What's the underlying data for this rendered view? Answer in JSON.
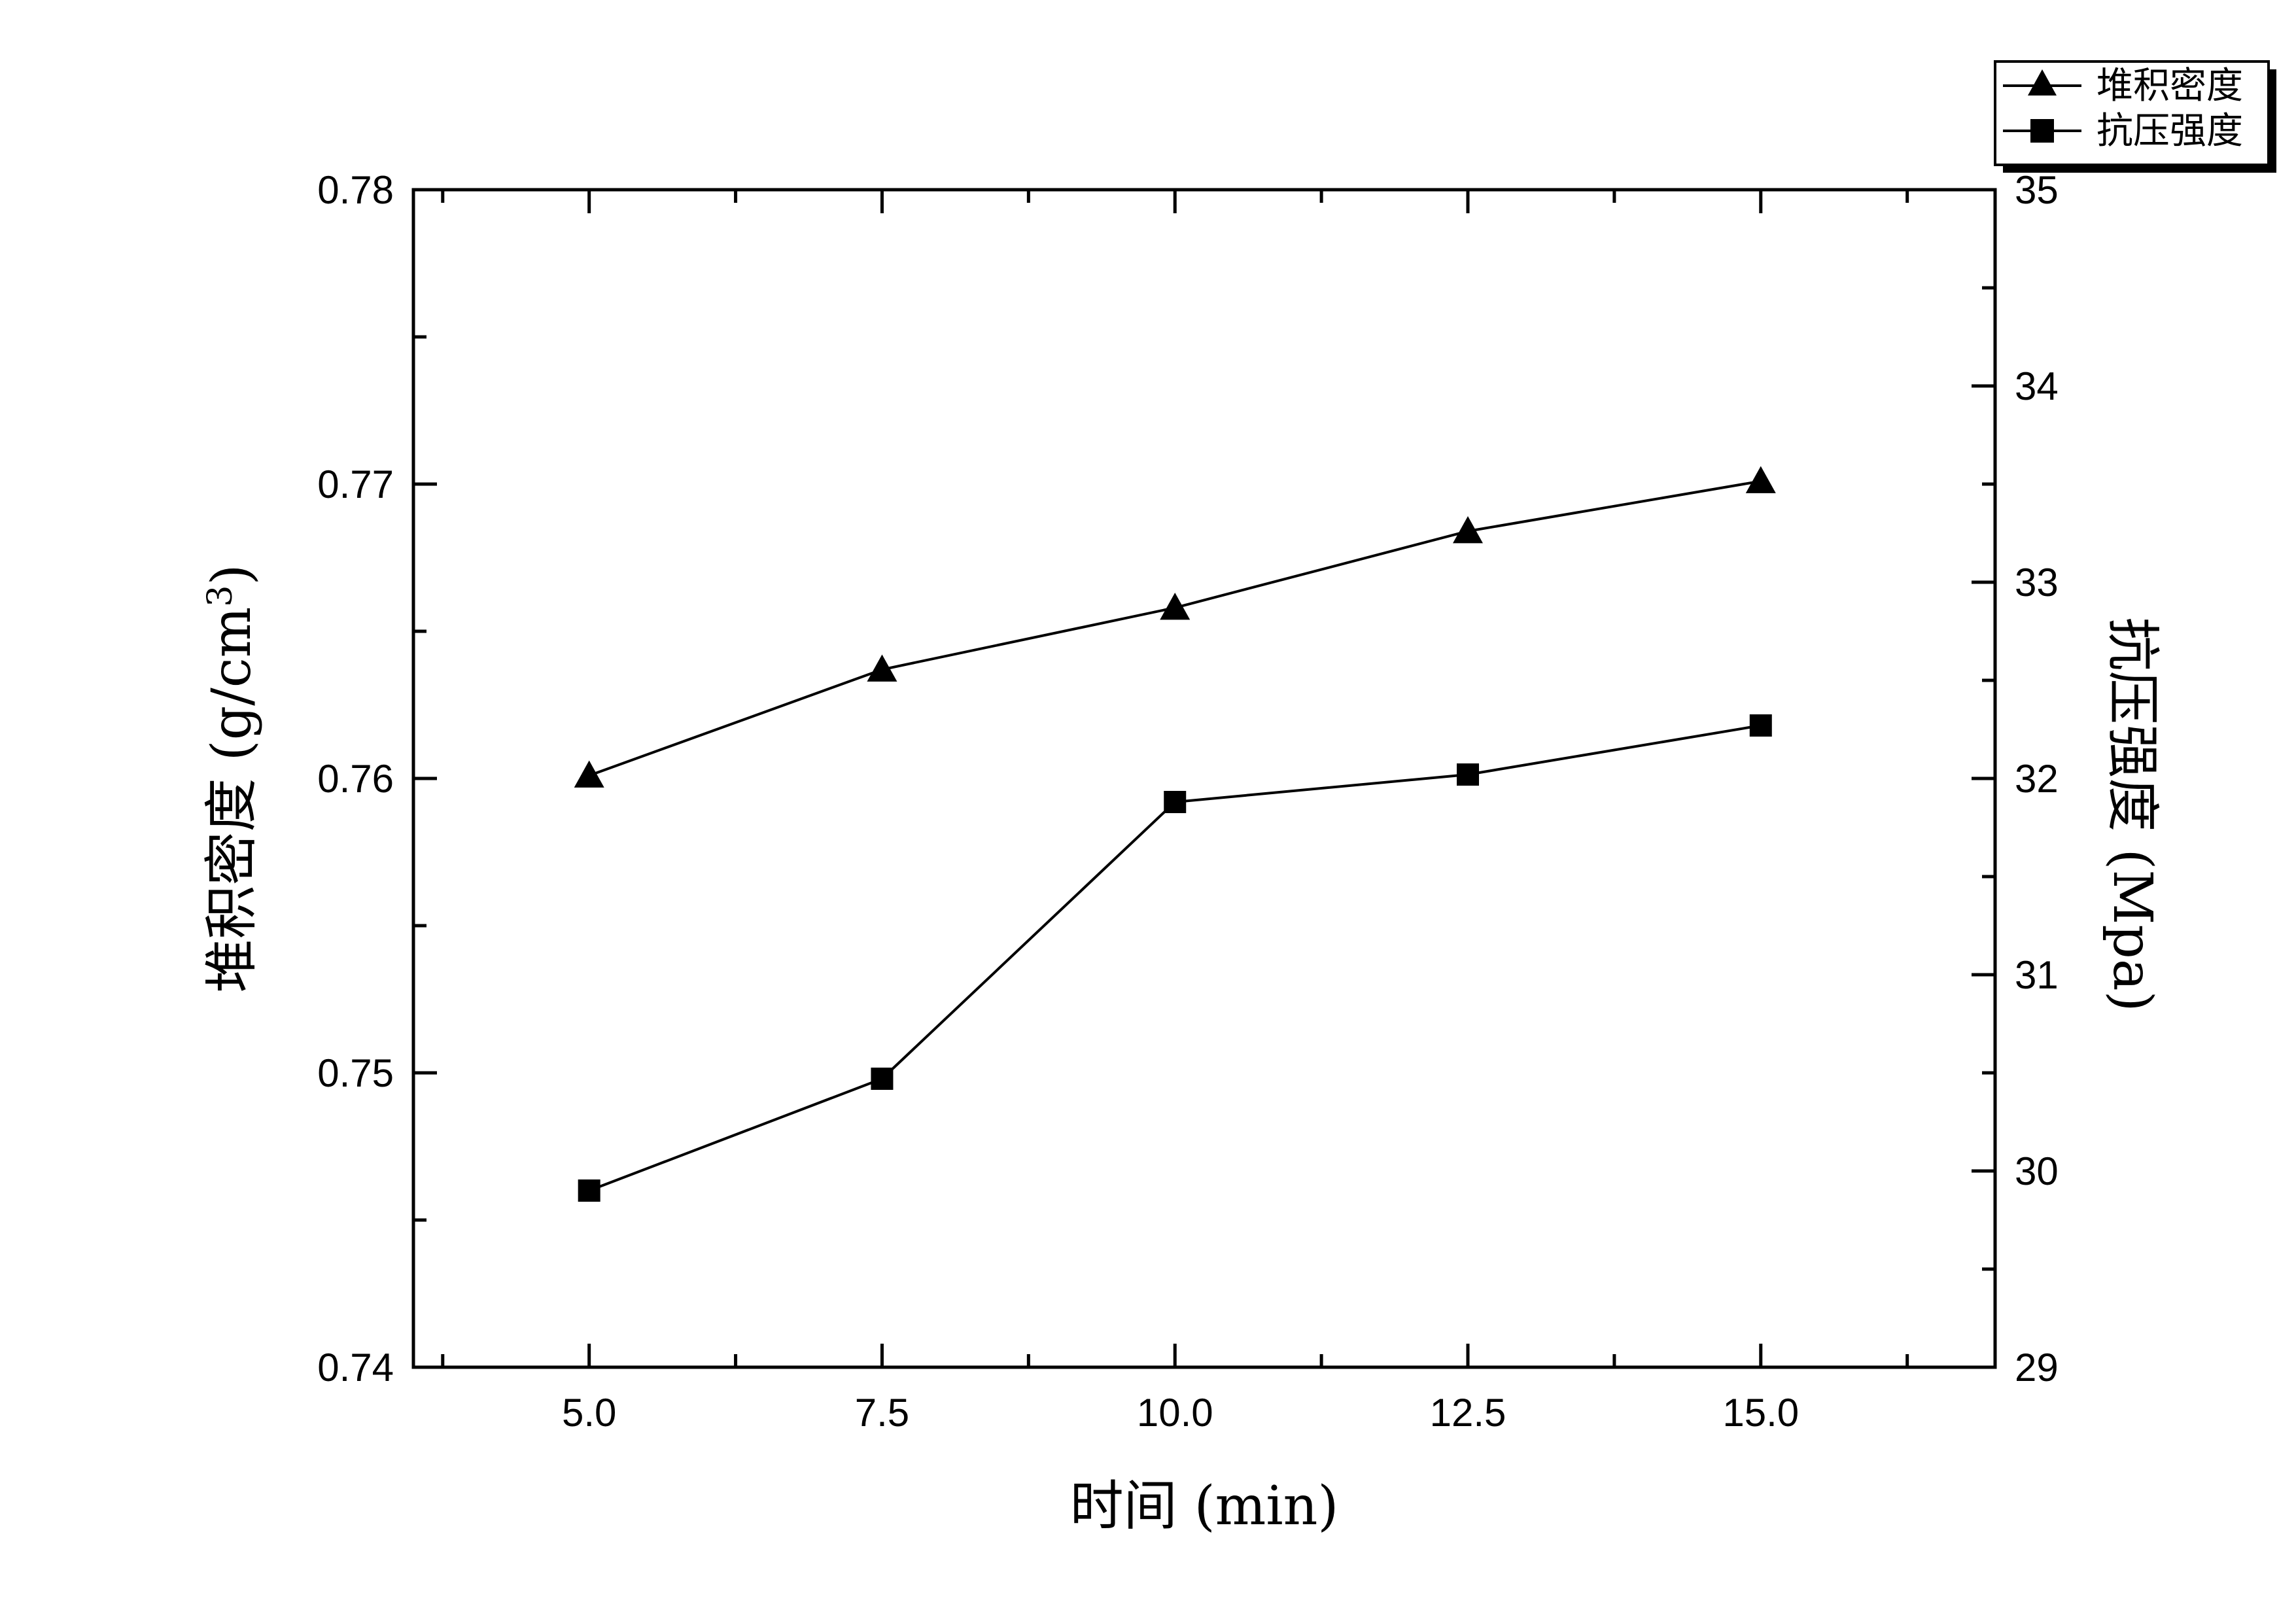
{
  "chart_data": {
    "type": "line",
    "x": [
      5.0,
      7.5,
      10.0,
      12.5,
      15.0
    ],
    "x_ticks": [
      "5.0",
      "7.5",
      "10.0",
      "12.5",
      "15.0"
    ],
    "xlabel": "时间 (min)",
    "xlim": [
      3.5,
      17.0
    ],
    "y_left": {
      "label_main": "堆积密度 (g/cm",
      "label_sup": "3",
      "label_end": ")",
      "ylim": [
        0.74,
        0.78
      ],
      "ticks": [
        "0.74",
        "0.75",
        "0.76",
        "0.77",
        "0.78"
      ]
    },
    "y_right": {
      "label": "抗压强度 (Mpa)",
      "ylim": [
        29,
        35
      ],
      "ticks": [
        "29",
        "30",
        "31",
        "32",
        "33",
        "34",
        "35"
      ]
    },
    "series": [
      {
        "name": "堆积密度",
        "axis": "left",
        "marker": "triangle",
        "values": [
          0.7601,
          0.7637,
          0.7658,
          0.7684,
          0.7701
        ]
      },
      {
        "name": "抗压强度",
        "axis": "right",
        "marker": "square",
        "values": [
          29.9,
          30.47,
          31.88,
          32.02,
          32.27
        ]
      }
    ],
    "legend_position": "top-right",
    "grid": false,
    "colors": {
      "line": "#000000",
      "marker": "#000000",
      "frame": "#000000"
    }
  }
}
